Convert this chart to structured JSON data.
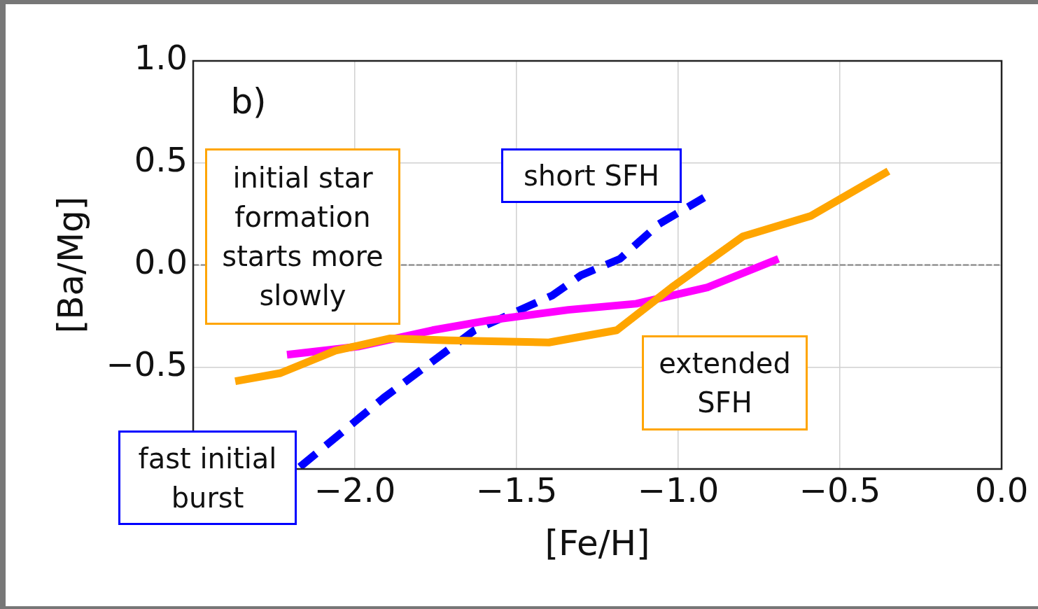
{
  "chart_data": {
    "type": "line",
    "xlabel": "[Fe/H]",
    "ylabel": "[Ba/Mg]",
    "xlim": [
      -2.5,
      0.0
    ],
    "xticks": [
      {
        "value": -2.5,
        "label": null
      },
      {
        "value": -2.0,
        "label": "−2.0"
      },
      {
        "value": -1.5,
        "label": "−1.5"
      },
      {
        "value": -1.0,
        "label": "−1.0"
      },
      {
        "value": -0.5,
        "label": "−0.5"
      },
      {
        "value": 0.0,
        "label": "0.0"
      }
    ],
    "ylim": [
      -1.0,
      1.0
    ],
    "yticks": [
      {
        "value": -1.0,
        "label": null
      },
      {
        "value": -0.5,
        "label": "−0.5"
      },
      {
        "value": 0.0,
        "label": "0.0"
      },
      {
        "value": 0.5,
        "label": "0.5"
      },
      {
        "value": 1.0,
        "label": "1.0"
      }
    ],
    "grid": true,
    "legend": false,
    "marker": "none",
    "series": [
      {
        "type": "line",
        "color": "#ffa500",
        "line_style": "solid",
        "x": [
          -2.37,
          -2.23,
          -2.06,
          -1.89,
          -1.71,
          -1.4,
          -1.19,
          -1.02,
          -0.8,
          -0.59,
          -0.35
        ],
        "values": [
          -0.57,
          -0.53,
          -0.42,
          -0.36,
          -0.37,
          -0.38,
          -0.32,
          -0.11,
          0.14,
          0.24,
          0.46
        ]
      },
      {
        "type": "line",
        "color": "#ff00ff",
        "line_style": "solid",
        "x": [
          -2.21,
          -1.99,
          -1.76,
          -1.58,
          -1.34,
          -1.13,
          -0.91,
          -0.69
        ],
        "values": [
          -0.44,
          -0.4,
          -0.32,
          -0.27,
          -0.22,
          -0.19,
          -0.11,
          0.03
        ]
      },
      {
        "type": "line",
        "color": "#0000ff",
        "line_style": "dashed",
        "x": [
          -2.17,
          -1.91,
          -1.63,
          -1.39,
          -1.3,
          -1.18,
          -1.06,
          -0.92
        ],
        "values": [
          -0.99,
          -0.65,
          -0.32,
          -0.15,
          -0.05,
          0.03,
          0.2,
          0.33
        ]
      }
    ],
    "ref_lines": [
      {
        "axis": "y",
        "value": 0.0,
        "color": "#808080",
        "line_style": "dashed"
      }
    ],
    "annotations": [
      "b)",
      "initial star formation starts more slowly",
      "short SFH",
      "extended SFH",
      "fast initial burst"
    ]
  }
}
